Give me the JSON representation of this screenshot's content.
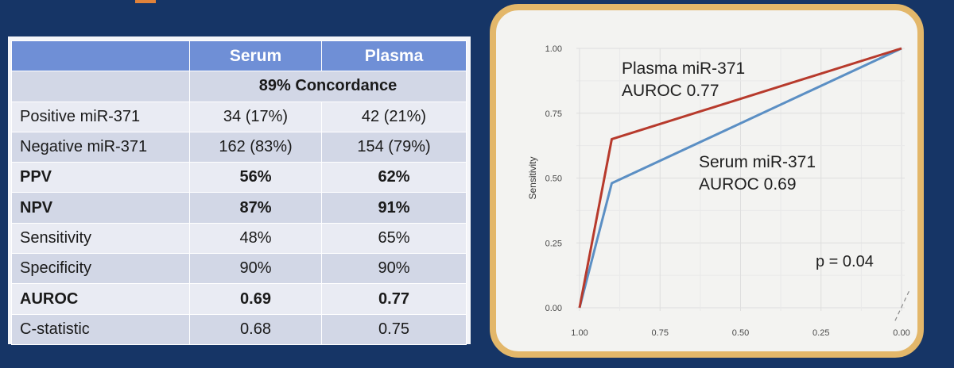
{
  "table": {
    "headers": [
      "",
      "Serum",
      "Plasma"
    ],
    "concordance": "89% Concordance",
    "rows": [
      {
        "label": "Positive miR-371",
        "serum": "34 (17%)",
        "plasma": "42 (21%)",
        "bold": false
      },
      {
        "label": "Negative miR-371",
        "serum": "162 (83%)",
        "plasma": "154 (79%)",
        "bold": false
      },
      {
        "label": "PPV",
        "serum": "56%",
        "plasma": "62%",
        "bold": true
      },
      {
        "label": "NPV",
        "serum": "87%",
        "plasma": "91%",
        "bold": true
      },
      {
        "label": "Sensitivity",
        "serum": "48%",
        "plasma": "65%",
        "bold": false
      },
      {
        "label": "Specificity",
        "serum": "90%",
        "plasma": "90%",
        "bold": false
      },
      {
        "label": "AUROC",
        "serum": "0.69",
        "plasma": "0.77",
        "bold": true
      },
      {
        "label": "C-statistic",
        "serum": "0.68",
        "plasma": "0.75",
        "bold": false
      }
    ]
  },
  "chart_data": {
    "type": "line",
    "title": "",
    "xlabel": "",
    "ylabel": "Sensitivity",
    "xlim": [
      1.0,
      0.0
    ],
    "ylim": [
      0.0,
      1.0
    ],
    "x_reversed": true,
    "x_ticks": [
      "1.00",
      "0.75",
      "0.50",
      "0.25",
      "0.00"
    ],
    "y_ticks": [
      "0.00",
      "0.25",
      "0.50",
      "0.75",
      "1.00"
    ],
    "grid": true,
    "series": [
      {
        "name": "Plasma miR-371",
        "color": "#b73a2c",
        "x": [
          1.0,
          0.9,
          0.0
        ],
        "y": [
          0.0,
          0.65,
          1.0
        ]
      },
      {
        "name": "Serum miR-371",
        "color": "#5b8fc4",
        "x": [
          1.0,
          0.9,
          0.0
        ],
        "y": [
          0.0,
          0.48,
          1.0
        ]
      }
    ],
    "annotations": [
      {
        "text_line1": "Plasma miR-371",
        "text_line2": "AUROC 0.77"
      },
      {
        "text_line1": "Serum miR-371",
        "text_line2": "AUROC 0.69"
      },
      {
        "text": "p = 0.04"
      }
    ],
    "reference_line": {
      "style": "dashed",
      "color": "#8a8a8a"
    }
  },
  "colors": {
    "background": "#163566",
    "frame": "#e3b76a",
    "header": "#6f8fd6",
    "accent": "#e0823a"
  }
}
